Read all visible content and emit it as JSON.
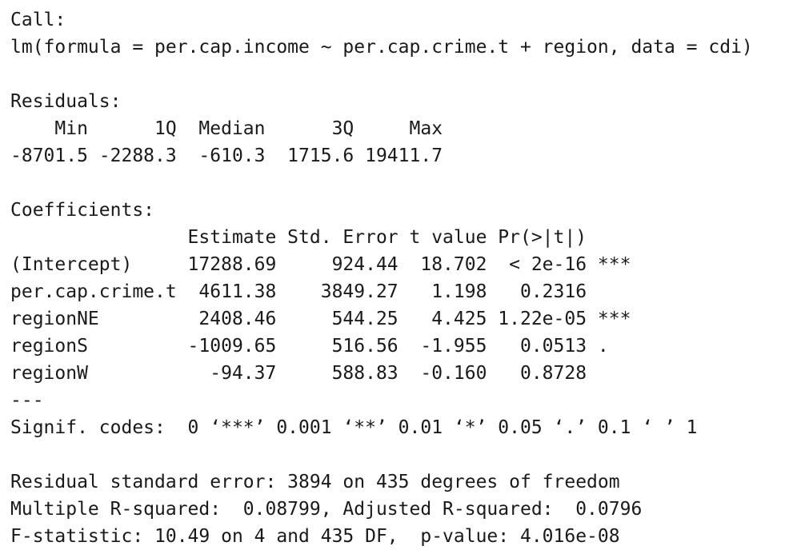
{
  "call": {
    "header": "Call:",
    "formula": "lm(formula = per.cap.income ~ per.cap.crime.t + region, data = cdi)"
  },
  "residuals": {
    "header": "Residuals:",
    "labels_line": "    Min      1Q  Median      3Q     Max ",
    "values_line": "-8701.5 -2288.3  -610.3  1715.6 19411.7 ",
    "stats": {
      "Min": -8701.5,
      "1Q": -2288.3,
      "Median": -610.3,
      "3Q": 1715.6,
      "Max": 19411.7
    }
  },
  "coefficients": {
    "header": "Coefficients:",
    "column_header_line": "                Estimate Std. Error t value Pr(>|t|)    ",
    "rows": [
      {
        "line": "(Intercept)     17288.69     924.44  18.702  < 2e-16 ***",
        "term": "(Intercept)",
        "estimate": 17288.69,
        "std_error": 924.44,
        "t_value": 18.702,
        "p_value": "< 2e-16",
        "signif": "***"
      },
      {
        "line": "per.cap.crime.t  4611.38    3849.27   1.198   0.2316    ",
        "term": "per.cap.crime.t",
        "estimate": 4611.38,
        "std_error": 3849.27,
        "t_value": 1.198,
        "p_value": "0.2316",
        "signif": ""
      },
      {
        "line": "regionNE         2408.46     544.25   4.425 1.22e-05 ***",
        "term": "regionNE",
        "estimate": 2408.46,
        "std_error": 544.25,
        "t_value": 4.425,
        "p_value": "1.22e-05",
        "signif": "***"
      },
      {
        "line": "regionS         -1009.65     516.56  -1.955   0.0513 .  ",
        "term": "regionS",
        "estimate": -1009.65,
        "std_error": 516.56,
        "t_value": -1.955,
        "p_value": "0.0513",
        "signif": "."
      },
      {
        "line": "regionW           -94.37     588.83  -0.160   0.8728    ",
        "term": "regionW",
        "estimate": -94.37,
        "std_error": 588.83,
        "t_value": -0.16,
        "p_value": "0.8728",
        "signif": ""
      }
    ],
    "separator": "---",
    "signif_codes": "Signif. codes:  0 ‘***’ 0.001 ‘**’ 0.01 ‘*’ 0.05 ‘.’ 0.1 ‘ ’ 1"
  },
  "summary": {
    "residual_se": "Residual standard error: 3894 on 435 degrees of freedom",
    "r_squared": "Multiple R-squared:  0.08799,\tAdjusted R-squared:  0.0796 ",
    "f_statistic": "F-statistic: 10.49 on 4 and 435 DF,  p-value: 4.016e-08"
  }
}
